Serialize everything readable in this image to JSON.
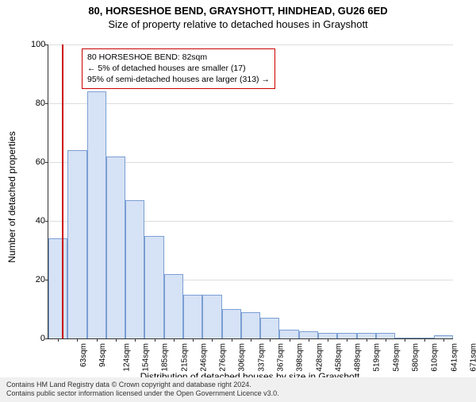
{
  "title_main": "80, HORSESHOE BEND, GRAYSHOTT, HINDHEAD, GU26 6ED",
  "title_sub": "Size of property relative to detached houses in Grayshott",
  "chart": {
    "type": "histogram",
    "ylabel": "Number of detached properties",
    "xlabel": "Distribution of detached houses by size in Grayshott",
    "ylim": [
      0,
      100
    ],
    "ytick_step": 20,
    "yticks": [
      0,
      20,
      40,
      60,
      80,
      100
    ],
    "bar_fill": "#d6e2f5",
    "bar_border": "#7a9fd4",
    "grid_color": "#dddddd",
    "x_categories": [
      "63sqm",
      "94sqm",
      "124sqm",
      "154sqm",
      "185sqm",
      "215sqm",
      "246sqm",
      "276sqm",
      "306sqm",
      "337sqm",
      "367sqm",
      "398sqm",
      "428sqm",
      "458sqm",
      "489sqm",
      "519sqm",
      "549sqm",
      "580sqm",
      "610sqm",
      "641sqm",
      "671sqm"
    ],
    "bar_values": [
      34,
      64,
      84,
      62,
      47,
      35,
      22,
      15,
      15,
      10,
      9,
      7,
      3,
      2.5,
      2,
      2,
      2,
      2,
      0,
      0,
      1
    ],
    "ref_line_index": 0.7,
    "ref_line_color": "#cc0000",
    "annotation": {
      "lines": [
        "80 HORSESHOE BEND: 82sqm",
        "← 5% of detached houses are smaller (17)",
        "95% of semi-detached houses are larger (313) →"
      ],
      "border_color": "#cc0000"
    }
  },
  "footer_line1": "Contains HM Land Registry data © Crown copyright and database right 2024.",
  "footer_line2": "Contains public sector information licensed under the Open Government Licence v3.0."
}
